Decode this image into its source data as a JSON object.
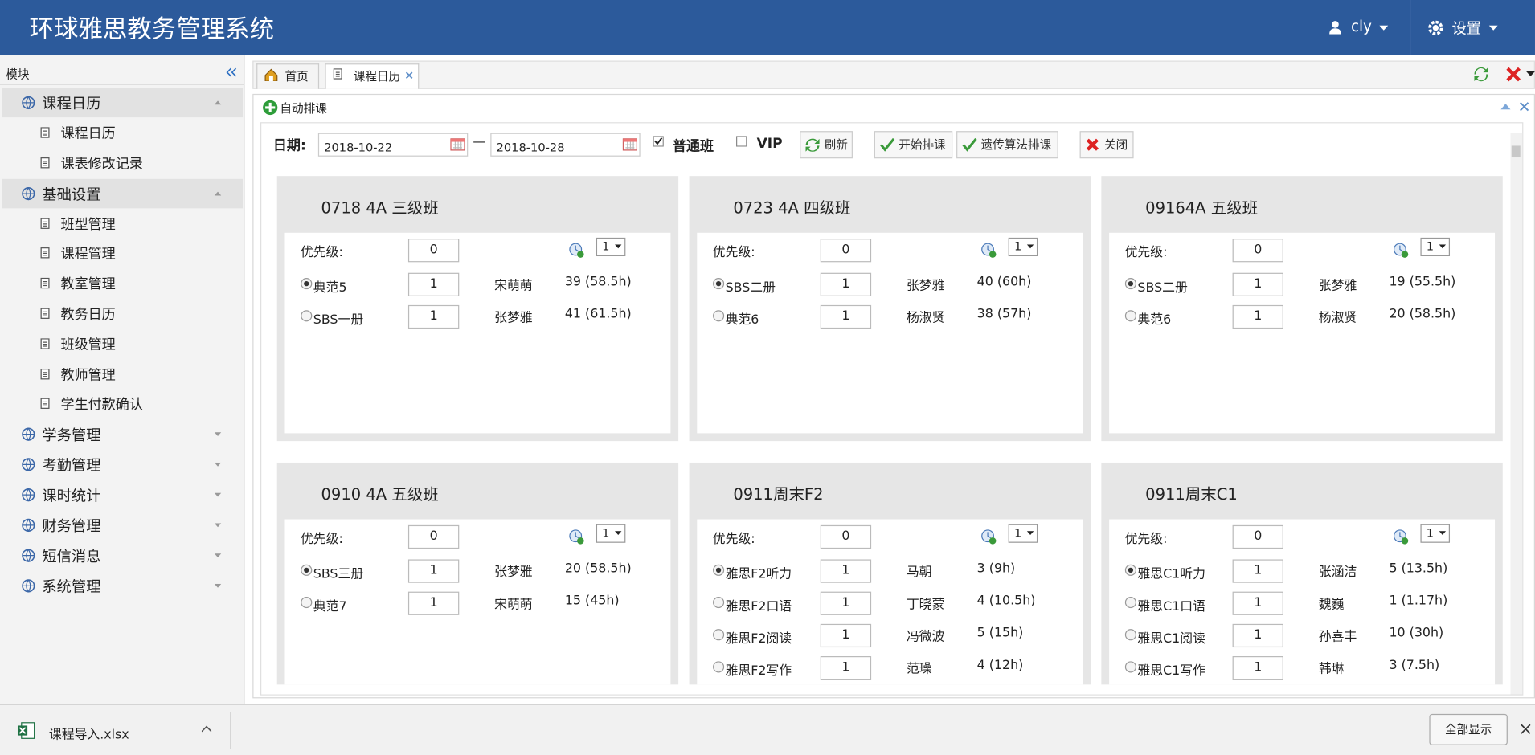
{
  "header": {
    "title": "环球雅思教务管理系统",
    "user": "cly",
    "settings": "设置"
  },
  "sidebar": {
    "title": "模块",
    "groups": [
      {
        "label": "课程日历",
        "expanded": true,
        "items": [
          "课程日历",
          "课表修改记录"
        ]
      },
      {
        "label": "基础设置",
        "expanded": true,
        "items": [
          "班型管理",
          "课程管理",
          "教室管理",
          "教务日历",
          "班级管理",
          "教师管理",
          "学生付款确认"
        ]
      },
      {
        "label": "学务管理",
        "expanded": false
      },
      {
        "label": "考勤管理",
        "expanded": false
      },
      {
        "label": "课时统计",
        "expanded": false
      },
      {
        "label": "财务管理",
        "expanded": false
      },
      {
        "label": "短信消息",
        "expanded": false
      },
      {
        "label": "系统管理",
        "expanded": false
      }
    ]
  },
  "tabs": [
    {
      "label": "首页",
      "active": false
    },
    {
      "label": "课程日历",
      "active": true
    }
  ],
  "panel": {
    "title": "自动排课",
    "date_label": "日期:",
    "start": "2018-10-22",
    "dash": "—",
    "end": "2018-10-28",
    "checkboxes": [
      {
        "label": "普通班",
        "checked": true
      },
      {
        "label": "VIP",
        "checked": false
      }
    ],
    "buttons": [
      "刷新",
      "开始排课",
      "遗传算法排课",
      "关闭"
    ]
  },
  "cards": [
    {
      "title": "0718 4A 三级班",
      "priority_label": "优先级:",
      "priority": 0,
      "select": 1,
      "courses": [
        {
          "name": "典范5",
          "count": 1,
          "teacher": "宋萌萌",
          "hours": "39 (58.5h)",
          "selected": true
        },
        {
          "name": "SBS一册",
          "count": 1,
          "teacher": "张梦雅",
          "hours": "41 (61.5h)",
          "selected": false
        }
      ]
    },
    {
      "title": "0723 4A 四级班",
      "priority_label": "优先级:",
      "priority": 0,
      "select": 1,
      "courses": [
        {
          "name": "SBS二册",
          "count": 1,
          "teacher": "张梦雅",
          "hours": "40 (60h)",
          "selected": true
        },
        {
          "name": "典范6",
          "count": 1,
          "teacher": "杨淑贤",
          "hours": "38 (57h)",
          "selected": false
        }
      ]
    },
    {
      "title": "09164A 五级班",
      "priority_label": "优先级:",
      "priority": 0,
      "select": 1,
      "courses": [
        {
          "name": "SBS二册",
          "count": 1,
          "teacher": "张梦雅",
          "hours": "19 (55.5h)",
          "selected": true
        },
        {
          "name": "典范6",
          "count": 1,
          "teacher": "杨淑贤",
          "hours": "20 (58.5h)",
          "selected": false
        }
      ]
    },
    {
      "title": "0910 4A 五级班",
      "priority_label": "优先级:",
      "priority": 0,
      "select": 1,
      "courses": [
        {
          "name": "SBS三册",
          "count": 1,
          "teacher": "张梦雅",
          "hours": "20 (58.5h)",
          "selected": true
        },
        {
          "name": "典范7",
          "count": 1,
          "teacher": "宋萌萌",
          "hours": "15 (45h)",
          "selected": false
        }
      ]
    },
    {
      "title": "0911周末F2",
      "priority_label": "优先级:",
      "priority": 0,
      "select": 1,
      "courses": [
        {
          "name": "雅思F2听力",
          "count": 1,
          "teacher": "马朝",
          "hours": "3 (9h)",
          "selected": true
        },
        {
          "name": "雅思F2口语",
          "count": 1,
          "teacher": "丁晓蒙",
          "hours": "4 (10.5h)",
          "selected": false
        },
        {
          "name": "雅思F2阅读",
          "count": 1,
          "teacher": "冯微波",
          "hours": "5 (15h)",
          "selected": false
        },
        {
          "name": "雅思F2写作",
          "count": 1,
          "teacher": "范璪",
          "hours": "4 (12h)",
          "selected": false
        }
      ]
    },
    {
      "title": "0911周末C1",
      "priority_label": "优先级:",
      "priority": 0,
      "select": 1,
      "courses": [
        {
          "name": "雅思C1听力",
          "count": 1,
          "teacher": "张涵洁",
          "hours": "5 (13.5h)",
          "selected": true
        },
        {
          "name": "雅思C1口语",
          "count": 1,
          "teacher": "魏巍",
          "hours": "1 (1.17h)",
          "selected": false
        },
        {
          "name": "雅思C1阅读",
          "count": 1,
          "teacher": "孙喜丰",
          "hours": "10 (30h)",
          "selected": false
        },
        {
          "name": "雅思C1写作",
          "count": 1,
          "teacher": "韩琳",
          "hours": "3 (7.5h)",
          "selected": false
        }
      ]
    }
  ],
  "download": {
    "file": "课程导入.xlsx",
    "show_all": "全部显示"
  }
}
